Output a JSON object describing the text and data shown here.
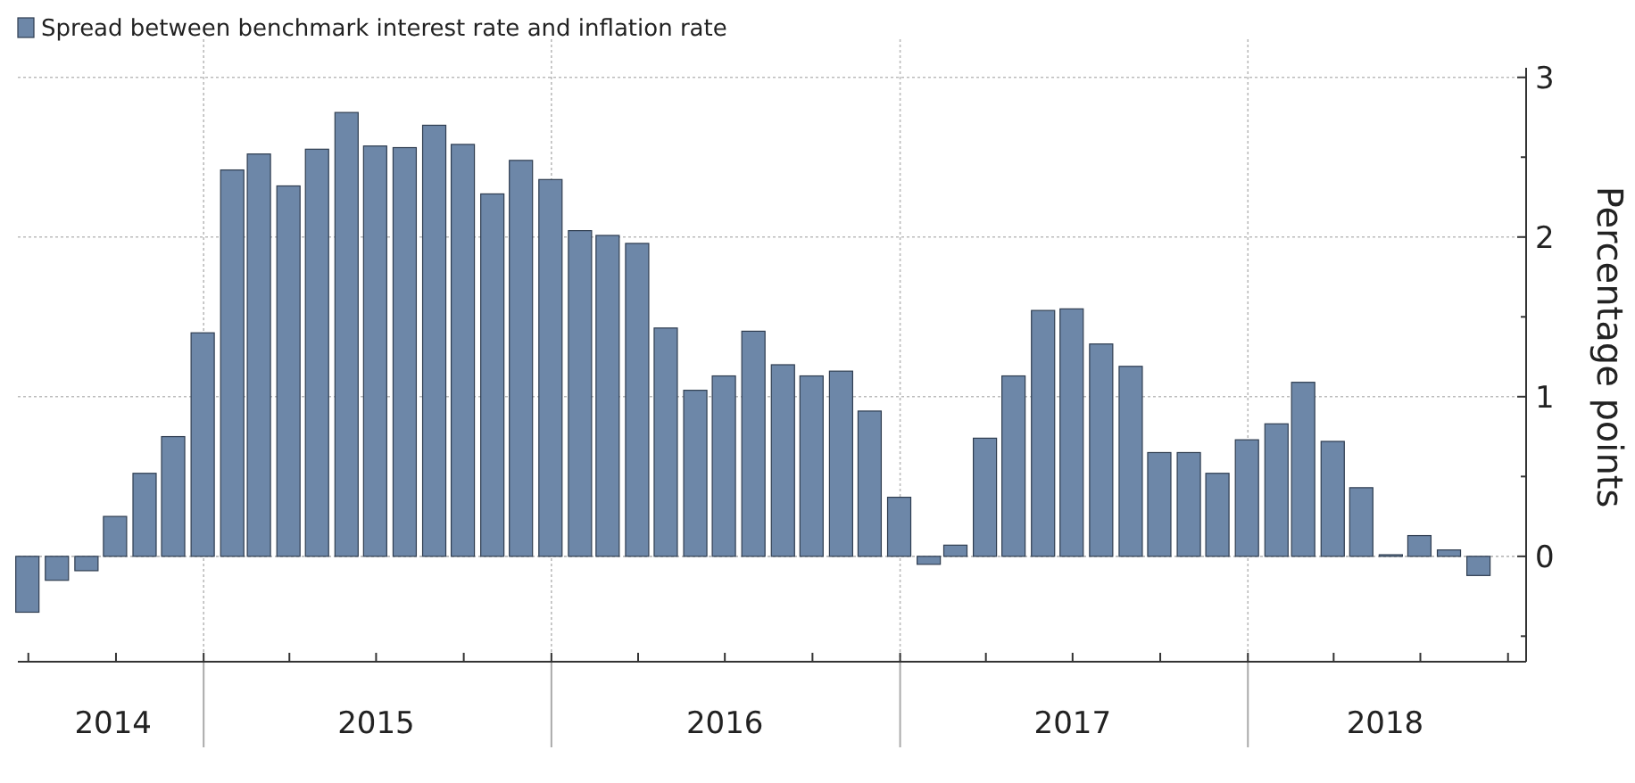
{
  "chart_data": {
    "type": "bar",
    "ylabel": "Percentage points",
    "legend": "top left",
    "grid": true,
    "x": [
      "2014-06-30",
      "2014-07-31",
      "2014-08-31",
      "2014-09-30",
      "2014-10-31",
      "2014-11-30",
      "2014-12-31",
      "2015-01-31",
      "2015-02-28",
      "2015-03-31",
      "2015-04-30",
      "2015-05-31",
      "2015-06-30",
      "2015-07-31",
      "2015-08-31",
      "2015-09-30",
      "2015-10-31",
      "2015-11-30",
      "2015-12-31",
      "2016-01-31",
      "2016-02-29",
      "2016-03-31",
      "2016-04-30",
      "2016-05-31",
      "2016-06-30",
      "2016-07-31",
      "2016-08-31",
      "2016-09-30",
      "2016-10-31",
      "2016-11-30",
      "2016-12-31",
      "2017-01-31",
      "2017-02-28",
      "2017-03-31",
      "2017-04-30",
      "2017-05-31",
      "2017-06-30",
      "2017-07-31",
      "2017-08-31",
      "2017-09-30",
      "2017-10-31",
      "2017-11-30",
      "2017-12-31",
      "2018-01-31",
      "2018-02-28",
      "2018-03-31",
      "2018-04-30",
      "2018-05-31",
      "2018-06-30",
      "2018-07-31",
      "2018-08-31"
    ],
    "series": [
      {
        "name": "Spread between benchmark interest rate and inflation rate",
        "color": "#6d87a8",
        "values": [
          -0.35,
          -0.15,
          -0.09,
          0.25,
          0.52,
          0.75,
          1.4,
          2.42,
          2.52,
          2.32,
          2.55,
          2.78,
          2.57,
          2.56,
          2.7,
          2.58,
          2.27,
          2.48,
          2.36,
          2.04,
          2.01,
          1.96,
          1.43,
          1.04,
          1.13,
          1.41,
          1.2,
          1.13,
          1.16,
          0.91,
          0.37,
          -0.05,
          0.07,
          0.74,
          1.13,
          1.54,
          1.55,
          1.33,
          1.19,
          0.65,
          0.65,
          0.52,
          0.73,
          0.83,
          1.09,
          0.72,
          0.43,
          0.01,
          0.13,
          0.04,
          -0.12
        ]
      }
    ],
    "xlim": [
      "2014-06-20",
      "2018-10-20"
    ],
    "xticks": [
      {
        "value": "2014-07-01",
        "label": null
      },
      {
        "value": "2014-10-01",
        "label": null
      },
      {
        "value": "2015-01-01",
        "label": null
      },
      {
        "value": "2015-04-01",
        "label": null
      },
      {
        "value": "2015-07-01",
        "label": null
      },
      {
        "value": "2015-10-01",
        "label": null
      },
      {
        "value": "2016-01-01",
        "label": null
      },
      {
        "value": "2016-04-01",
        "label": null
      },
      {
        "value": "2016-07-01",
        "label": null
      },
      {
        "value": "2016-10-01",
        "label": null
      },
      {
        "value": "2017-01-01",
        "label": null
      },
      {
        "value": "2017-04-01",
        "label": null
      },
      {
        "value": "2017-07-01",
        "label": null
      },
      {
        "value": "2017-10-01",
        "label": null
      },
      {
        "value": "2018-01-01",
        "label": null
      },
      {
        "value": "2018-04-01",
        "label": null
      },
      {
        "value": "2018-07-01",
        "label": null
      },
      {
        "value": "2018-10-01",
        "label": null
      },
      {
        "value": "2014-09-28",
        "label": "2014"
      },
      {
        "value": "2015-07-01",
        "label": "2015"
      },
      {
        "value": "2016-07-01",
        "label": "2016"
      },
      {
        "value": "2017-07-01",
        "label": "2017"
      },
      {
        "value": "2018-05-25",
        "label": "2018"
      }
    ],
    "ylim": [
      -0.66,
      3.06
    ],
    "yticks": [
      {
        "value": -0.5,
        "label": null
      },
      0,
      {
        "value": 0.5,
        "label": null
      },
      1,
      {
        "value": 1.5,
        "label": null
      },
      2,
      {
        "value": 2.5,
        "label": null
      },
      3
    ]
  }
}
